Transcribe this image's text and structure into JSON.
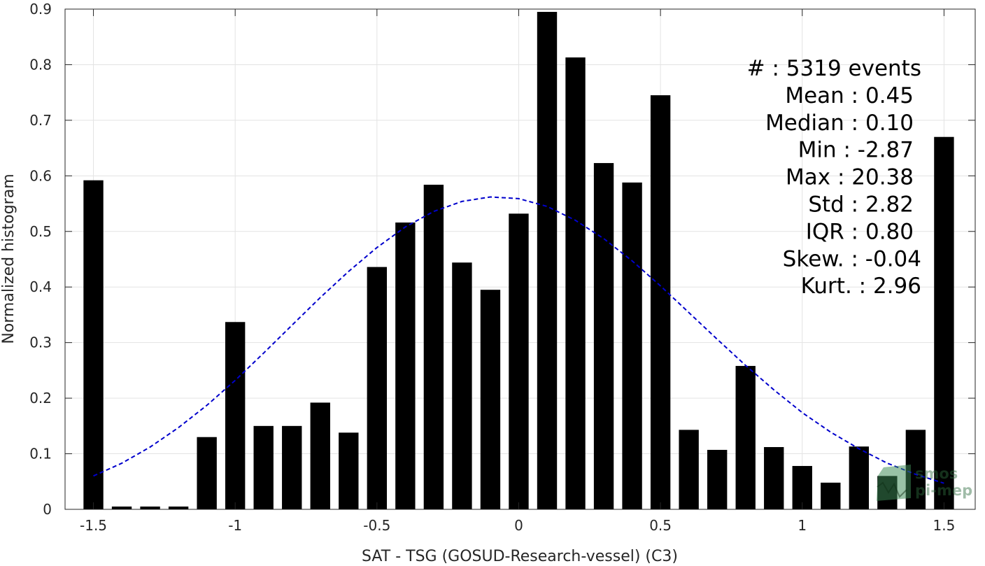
{
  "chart_data": {
    "type": "bar",
    "xlabel": "SAT - TSG (GOSUD-Research-vessel) (C3)",
    "ylabel": "Normalized histogram",
    "xlim": [
      -1.6,
      1.61
    ],
    "ylim": [
      0,
      0.9
    ],
    "grid": true,
    "x_ticks": [
      -1.5,
      -1,
      -0.5,
      0,
      0.5,
      1,
      1.5
    ],
    "x_tick_labels": [
      "-1.5",
      "-1",
      "-0.5",
      "0",
      "0.5",
      "1",
      "1.5"
    ],
    "y_ticks": [
      0,
      0.1,
      0.2,
      0.3,
      0.4,
      0.5,
      0.6,
      0.7,
      0.8,
      0.9
    ],
    "y_tick_labels": [
      "0",
      "0.1",
      "0.2",
      "0.3",
      "0.4",
      "0.5",
      "0.6",
      "0.7",
      "0.8",
      "0.9"
    ],
    "bar_color": "#000000",
    "bar_width": 0.07,
    "bars": {
      "x": [
        -1.5,
        -1.4,
        -1.3,
        -1.2,
        -1.1,
        -1.0,
        -0.9,
        -0.8,
        -0.7,
        -0.6,
        -0.5,
        -0.4,
        -0.3,
        -0.2,
        -0.1,
        0.0,
        0.1,
        0.2,
        0.3,
        0.4,
        0.5,
        0.6,
        0.7,
        0.8,
        0.9,
        1.0,
        1.1,
        1.2,
        1.3,
        1.4,
        1.5
      ],
      "values": [
        0.592,
        0.005,
        0.005,
        0.005,
        0.13,
        0.337,
        0.15,
        0.15,
        0.192,
        0.138,
        0.436,
        0.516,
        0.584,
        0.444,
        0.395,
        0.532,
        0.895,
        0.813,
        0.623,
        0.588,
        0.745,
        0.143,
        0.107,
        0.258,
        0.112,
        0.078,
        0.048,
        0.113,
        0.06,
        0.143,
        0.67
      ]
    },
    "fit_curve": {
      "style": "dashed",
      "color": "#0000cc",
      "x": [
        -1.5,
        -1.4,
        -1.3,
        -1.2,
        -1.1,
        -1.0,
        -0.9,
        -0.8,
        -0.7,
        -0.6,
        -0.5,
        -0.4,
        -0.3,
        -0.2,
        -0.1,
        0.0,
        0.1,
        0.2,
        0.3,
        0.4,
        0.5,
        0.6,
        0.7,
        0.8,
        0.9,
        1.0,
        1.1,
        1.2,
        1.3,
        1.4,
        1.5
      ],
      "values": [
        0.06,
        0.083,
        0.112,
        0.147,
        0.187,
        0.232,
        0.281,
        0.331,
        0.381,
        0.428,
        0.471,
        0.508,
        0.536,
        0.554,
        0.562,
        0.559,
        0.545,
        0.52,
        0.487,
        0.447,
        0.402,
        0.354,
        0.306,
        0.259,
        0.215,
        0.174,
        0.139,
        0.109,
        0.083,
        0.063,
        0.047
      ]
    },
    "stats_lines": [
      "#  : 5319 events",
      "Mean : 0.45",
      "Median : 0.10",
      "Min : -2.87",
      "Max : 20.38",
      "Std : 2.82",
      "IQR : 0.80",
      "Skew. : -0.04",
      "Kurt. : 2.96"
    ]
  },
  "watermark": {
    "line1": "smos",
    "line2": "pi-mep",
    "color": "#2e6b3e"
  }
}
